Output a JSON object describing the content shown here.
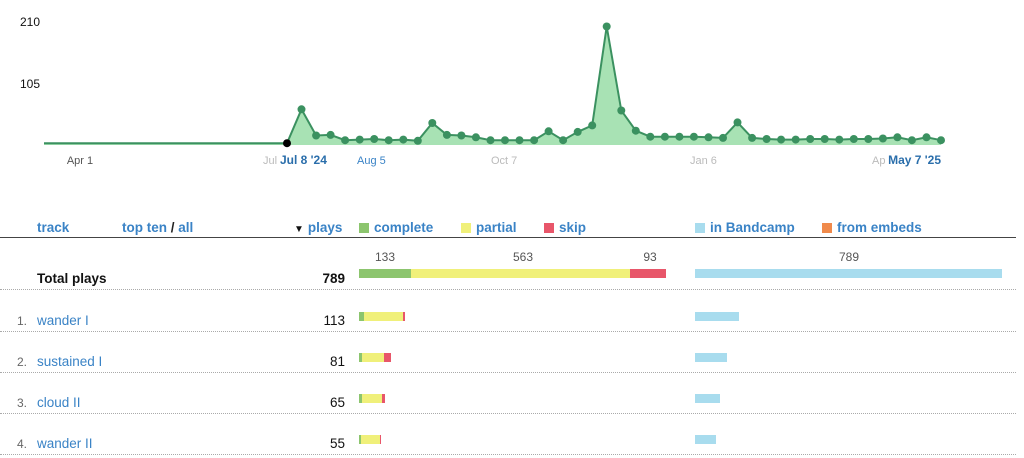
{
  "colors": {
    "link": "#3a83c6",
    "area_fill": "#a8e2b4",
    "area_line": "#3b9160",
    "complete": "#8cc56e",
    "partial": "#f0f07a",
    "skip": "#e8566a",
    "bandcamp": "#a8dcee",
    "embeds": "#f08a4b"
  },
  "chart_data": {
    "type": "area",
    "y_ticks": [
      "210",
      "105"
    ],
    "ylim": [
      0,
      210
    ],
    "x_tick_labels": [
      "Apr 1",
      "Jul",
      "Aug 5",
      "Oct 7",
      "Jan 6",
      "Ap"
    ],
    "range_start_label": "Jul 8 '24",
    "range_end_label": "May 7 '25",
    "flat_value": 3,
    "series": [
      {
        "values": [
          3,
          60,
          16,
          17,
          8,
          9,
          10,
          8,
          9,
          7,
          37,
          17,
          16,
          13,
          8,
          8,
          8,
          8,
          23,
          8,
          22,
          33,
          199,
          58,
          24,
          14,
          14,
          14,
          14,
          13,
          12,
          38,
          12,
          10,
          9,
          9,
          10,
          10,
          9,
          10,
          10,
          11,
          13,
          8,
          13,
          8
        ]
      }
    ]
  },
  "header": {
    "track": "track",
    "top_ten": "top ten",
    "slash": " / ",
    "all": "all",
    "sort_icon": "▼",
    "plays": "plays",
    "complete": "complete",
    "partial": "partial",
    "skip": "skip",
    "in_bandcamp": "in Bandcamp",
    "from_embeds": "from embeds"
  },
  "totals_labels": {
    "complete": "133",
    "partial": "563",
    "skip": "93",
    "bandcamp": "789"
  },
  "total_row": {
    "name": "Total plays",
    "plays": "789",
    "complete": 133,
    "partial": 563,
    "skip": 93,
    "bandcamp": 789,
    "embeds": 0
  },
  "tracks": [
    {
      "num": "1.",
      "name": "wander I",
      "plays": "113",
      "complete": 13,
      "partial": 100,
      "skip": 6,
      "bandcamp": 113,
      "embeds": 0
    },
    {
      "num": "2.",
      "name": "sustained I",
      "plays": "81",
      "complete": 8,
      "partial": 57,
      "skip": 18,
      "bandcamp": 81,
      "embeds": 0
    },
    {
      "num": "3.",
      "name": "cloud II",
      "plays": "65",
      "complete": 7,
      "partial": 52,
      "skip": 8,
      "bandcamp": 65,
      "embeds": 0
    },
    {
      "num": "4.",
      "name": "wander II",
      "plays": "55",
      "complete": 6,
      "partial": 47,
      "skip": 2,
      "bandcamp": 55,
      "embeds": 0
    }
  ]
}
